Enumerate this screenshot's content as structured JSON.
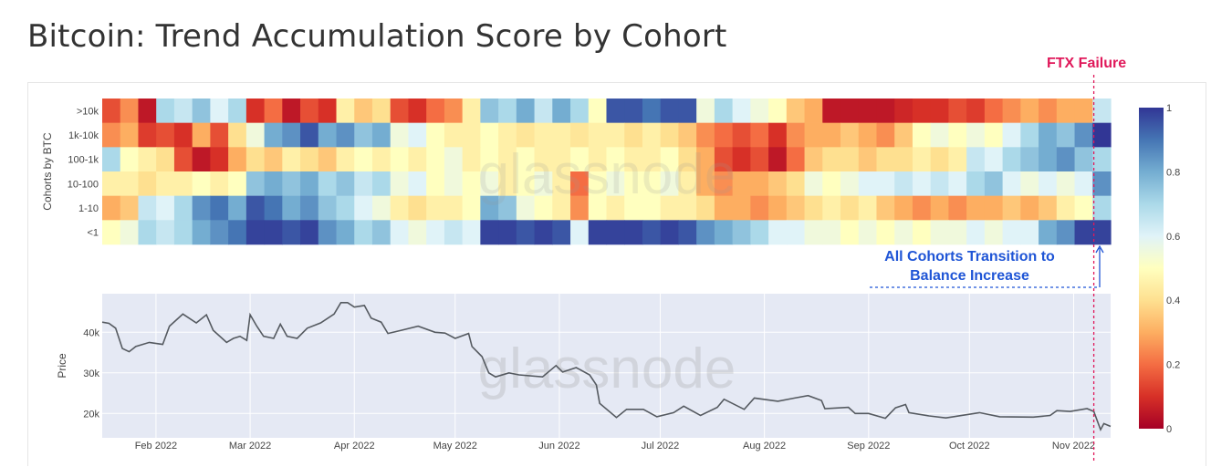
{
  "title": "Bitcoin: Trend Accumulation Score by Cohort",
  "annotations": {
    "event_label": "FTX Failure",
    "event_date": "2022-11-07",
    "transition_line1": "All Cohorts Transition to",
    "transition_line2": "Balance Increase",
    "event_color": "#e0185a",
    "transition_color": "#1f55d6"
  },
  "watermark": "glassnode",
  "chart_data": [
    {
      "type": "heatmap",
      "ylabel": "Cohorts by BTC",
      "rows": [
        ">10k",
        "1k-10k",
        "100-1k",
        "10-100",
        "1-10",
        "<1"
      ],
      "x_range": [
        "2022-01-16",
        "2022-11-12"
      ],
      "colorscale": [
        "#a50026",
        "#d73027",
        "#f46d43",
        "#fdae61",
        "#fee090",
        "#ffffbf",
        "#e0f3f8",
        "#abd9e9",
        "#74add1",
        "#4575b4",
        "#313695"
      ],
      "colorbar": {
        "range": [
          0,
          1
        ],
        "ticks": [
          "0",
          "0.2",
          "0.4",
          "0.6",
          "0.8",
          "1"
        ]
      },
      "values": [
        [
          0.15,
          0.25,
          0.05,
          0.7,
          0.65,
          0.75,
          0.6,
          0.7,
          0.1,
          0.2,
          0.05,
          0.15,
          0.1,
          0.45,
          0.35,
          0.4,
          0.15,
          0.1,
          0.2,
          0.25,
          0.45,
          0.75,
          0.7,
          0.8,
          0.65,
          0.8,
          0.7,
          0.5,
          0.95,
          0.95,
          0.9,
          0.95,
          0.95,
          0.55,
          0.7,
          0.6,
          0.55,
          0.5,
          0.35,
          0.3,
          0.05,
          0.05,
          0.05,
          0.05,
          0.08,
          0.1,
          0.1,
          0.15,
          0.12,
          0.2,
          0.25,
          0.3,
          0.25,
          0.3,
          0.3,
          0.65
        ],
        [
          0.25,
          0.3,
          0.12,
          0.15,
          0.1,
          0.3,
          0.15,
          0.4,
          0.55,
          0.8,
          0.85,
          0.95,
          0.8,
          0.85,
          0.75,
          0.8,
          0.55,
          0.6,
          0.5,
          0.45,
          0.45,
          0.5,
          0.45,
          0.42,
          0.45,
          0.45,
          0.42,
          0.45,
          0.45,
          0.4,
          0.45,
          0.4,
          0.35,
          0.25,
          0.2,
          0.15,
          0.2,
          0.1,
          0.25,
          0.3,
          0.3,
          0.35,
          0.3,
          0.25,
          0.35,
          0.5,
          0.55,
          0.5,
          0.55,
          0.5,
          0.6,
          0.7,
          0.8,
          0.75,
          0.85,
          1.0
        ],
        [
          0.7,
          0.5,
          0.45,
          0.4,
          0.15,
          0.05,
          0.1,
          0.3,
          0.4,
          0.35,
          0.45,
          0.4,
          0.35,
          0.45,
          0.5,
          0.45,
          0.5,
          0.45,
          0.5,
          0.55,
          0.45,
          0.5,
          0.45,
          0.5,
          0.45,
          0.45,
          0.5,
          0.45,
          0.5,
          0.45,
          0.45,
          0.5,
          0.4,
          0.3,
          0.15,
          0.1,
          0.15,
          0.05,
          0.2,
          0.35,
          0.4,
          0.4,
          0.35,
          0.4,
          0.4,
          0.45,
          0.4,
          0.45,
          0.65,
          0.6,
          0.7,
          0.75,
          0.8,
          0.85,
          0.75,
          0.7
        ],
        [
          0.45,
          0.45,
          0.4,
          0.45,
          0.45,
          0.5,
          0.45,
          0.5,
          0.75,
          0.8,
          0.75,
          0.8,
          0.7,
          0.75,
          0.65,
          0.7,
          0.55,
          0.6,
          0.5,
          0.55,
          0.5,
          0.55,
          0.45,
          0.5,
          0.55,
          0.45,
          0.2,
          0.5,
          0.55,
          0.5,
          0.5,
          0.55,
          0.45,
          0.3,
          0.25,
          0.3,
          0.3,
          0.35,
          0.4,
          0.55,
          0.5,
          0.55,
          0.6,
          0.6,
          0.65,
          0.6,
          0.65,
          0.6,
          0.7,
          0.75,
          0.6,
          0.55,
          0.6,
          0.55,
          0.6,
          0.85
        ],
        [
          0.3,
          0.35,
          0.65,
          0.6,
          0.7,
          0.85,
          0.9,
          0.8,
          0.95,
          0.9,
          0.8,
          0.85,
          0.75,
          0.7,
          0.6,
          0.55,
          0.45,
          0.4,
          0.45,
          0.45,
          0.5,
          0.8,
          0.75,
          0.55,
          0.5,
          0.45,
          0.25,
          0.5,
          0.45,
          0.5,
          0.5,
          0.45,
          0.45,
          0.4,
          0.3,
          0.3,
          0.25,
          0.3,
          0.35,
          0.4,
          0.45,
          0.4,
          0.45,
          0.35,
          0.3,
          0.25,
          0.3,
          0.25,
          0.3,
          0.3,
          0.35,
          0.3,
          0.35,
          0.45,
          0.5,
          0.7
        ],
        [
          0.5,
          0.55,
          0.7,
          0.65,
          0.7,
          0.8,
          0.85,
          0.9,
          0.98,
          0.98,
          0.95,
          0.98,
          0.85,
          0.8,
          0.7,
          0.75,
          0.6,
          0.55,
          0.6,
          0.65,
          0.6,
          0.98,
          0.98,
          0.95,
          0.98,
          0.95,
          0.6,
          0.98,
          0.98,
          0.98,
          0.95,
          0.98,
          0.95,
          0.85,
          0.8,
          0.75,
          0.7,
          0.6,
          0.6,
          0.55,
          0.55,
          0.5,
          0.55,
          0.5,
          0.55,
          0.5,
          0.55,
          0.55,
          0.6,
          0.55,
          0.6,
          0.6,
          0.8,
          0.85,
          0.98,
          0.98
        ]
      ]
    },
    {
      "type": "line",
      "ylabel": "Price",
      "y_ticks": [
        "20k",
        "30k",
        "40k"
      ],
      "ylim": [
        14000,
        49500
      ],
      "x_ticks": [
        "Feb 2022",
        "Mar 2022",
        "Apr 2022",
        "May 2022",
        "Jun 2022",
        "Jul 2022",
        "Aug 2022",
        "Sep 2022",
        "Oct 2022",
        "Nov 2022"
      ],
      "x_tick_dates": [
        "2022-02-01",
        "2022-03-01",
        "2022-04-01",
        "2022-05-01",
        "2022-06-01",
        "2022-07-01",
        "2022-08-01",
        "2022-09-01",
        "2022-10-01",
        "2022-11-01"
      ],
      "grid": true,
      "series": [
        {
          "color": "#555a60",
          "points": [
            [
              "2022-01-16",
              42500
            ],
            [
              "2022-01-18",
              42200
            ],
            [
              "2022-01-20",
              41000
            ],
            [
              "2022-01-22",
              36000
            ],
            [
              "2022-01-24",
              35200
            ],
            [
              "2022-01-26",
              36500
            ],
            [
              "2022-01-30",
              37500
            ],
            [
              "2022-02-03",
              37000
            ],
            [
              "2022-02-05",
              41500
            ],
            [
              "2022-02-09",
              44500
            ],
            [
              "2022-02-13",
              42300
            ],
            [
              "2022-02-16",
              44300
            ],
            [
              "2022-02-18",
              40500
            ],
            [
              "2022-02-22",
              37500
            ],
            [
              "2022-02-24",
              38500
            ],
            [
              "2022-02-26",
              39000
            ],
            [
              "2022-02-28",
              38000
            ],
            [
              "2022-03-01",
              44300
            ],
            [
              "2022-03-03",
              41500
            ],
            [
              "2022-03-05",
              39000
            ],
            [
              "2022-03-08",
              38500
            ],
            [
              "2022-03-10",
              42000
            ],
            [
              "2022-03-12",
              39000
            ],
            [
              "2022-03-15",
              38500
            ],
            [
              "2022-03-18",
              41000
            ],
            [
              "2022-03-22",
              42300
            ],
            [
              "2022-03-26",
              44500
            ],
            [
              "2022-03-28",
              47300
            ],
            [
              "2022-03-30",
              47300
            ],
            [
              "2022-04-01",
              46200
            ],
            [
              "2022-04-04",
              46600
            ],
            [
              "2022-04-06",
              43500
            ],
            [
              "2022-04-09",
              42500
            ],
            [
              "2022-04-11",
              39700
            ],
            [
              "2022-04-15",
              40500
            ],
            [
              "2022-04-20",
              41500
            ],
            [
              "2022-04-25",
              40000
            ],
            [
              "2022-04-28",
              39800
            ],
            [
              "2022-05-01",
              38500
            ],
            [
              "2022-05-05",
              39700
            ],
            [
              "2022-05-06",
              36500
            ],
            [
              "2022-05-09",
              34000
            ],
            [
              "2022-05-11",
              30000
            ],
            [
              "2022-05-13",
              29000
            ],
            [
              "2022-05-17",
              30000
            ],
            [
              "2022-05-20",
              29500
            ],
            [
              "2022-05-27",
              29000
            ],
            [
              "2022-05-31",
              31800
            ],
            [
              "2022-06-02",
              30200
            ],
            [
              "2022-06-06",
              31300
            ],
            [
              "2022-06-10",
              29500
            ],
            [
              "2022-06-12",
              27000
            ],
            [
              "2022-06-13",
              22500
            ],
            [
              "2022-06-18",
              19000
            ],
            [
              "2022-06-21",
              21000
            ],
            [
              "2022-06-26",
              21000
            ],
            [
              "2022-06-30",
              19200
            ],
            [
              "2022-07-05",
              20200
            ],
            [
              "2022-07-08",
              21800
            ],
            [
              "2022-07-13",
              19500
            ],
            [
              "2022-07-18",
              21500
            ],
            [
              "2022-07-20",
              23500
            ],
            [
              "2022-07-26",
              21000
            ],
            [
              "2022-07-29",
              23800
            ],
            [
              "2022-08-05",
              23000
            ],
            [
              "2022-08-10",
              23800
            ],
            [
              "2022-08-14",
              24400
            ],
            [
              "2022-08-18",
              23200
            ],
            [
              "2022-08-19",
              21200
            ],
            [
              "2022-08-26",
              21500
            ],
            [
              "2022-08-28",
              20000
            ],
            [
              "2022-09-01",
              20000
            ],
            [
              "2022-09-06",
              18800
            ],
            [
              "2022-09-09",
              21400
            ],
            [
              "2022-09-12",
              22200
            ],
            [
              "2022-09-13",
              20200
            ],
            [
              "2022-09-19",
              19400
            ],
            [
              "2022-09-24",
              18900
            ],
            [
              "2022-10-04",
              20200
            ],
            [
              "2022-10-10",
              19200
            ],
            [
              "2022-10-20",
              19100
            ],
            [
              "2022-10-25",
              19500
            ],
            [
              "2022-10-27",
              20700
            ],
            [
              "2022-10-31",
              20500
            ],
            [
              "2022-11-05",
              21200
            ],
            [
              "2022-11-07",
              20500
            ],
            [
              "2022-11-09",
              16000
            ],
            [
              "2022-11-10",
              17500
            ],
            [
              "2022-11-12",
              16800
            ]
          ]
        }
      ]
    }
  ]
}
